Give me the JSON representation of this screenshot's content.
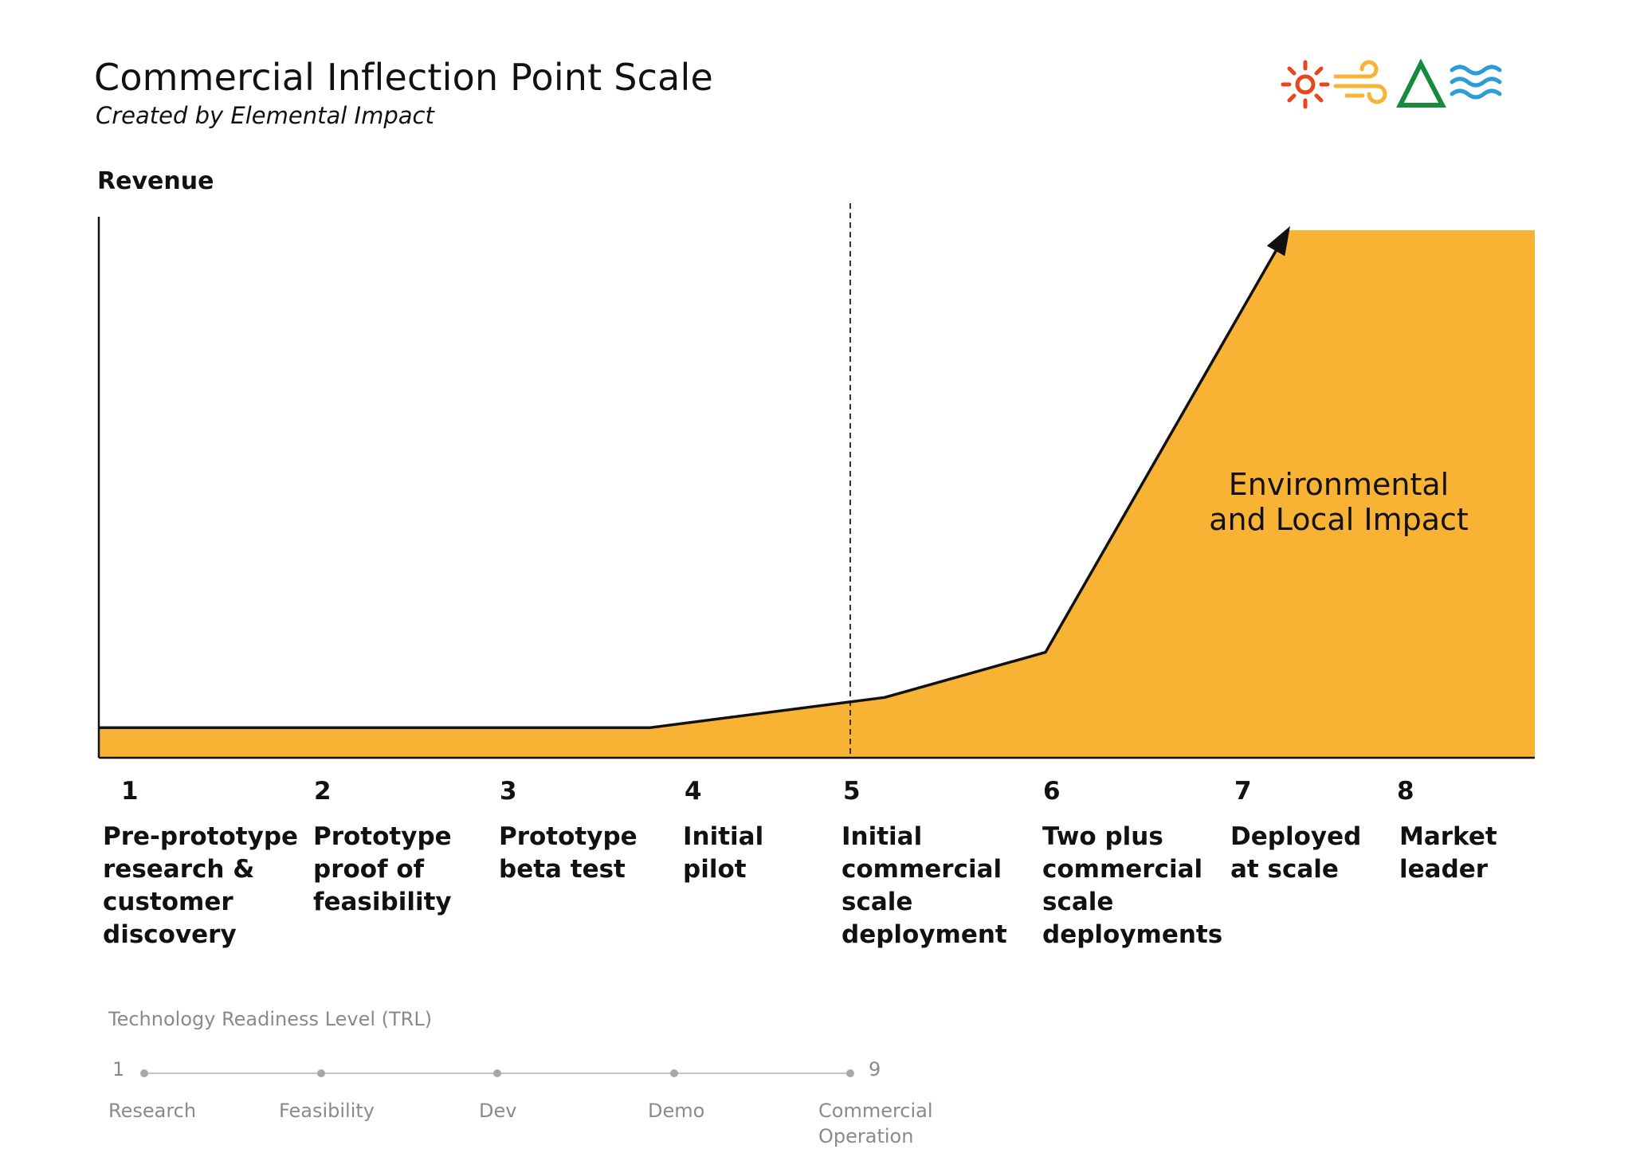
{
  "header": {
    "title": "Commercial Inflection Point Scale",
    "subtitle": "Created by Elemental Impact"
  },
  "logo": {
    "icons": [
      "sun-icon",
      "wind-icon",
      "triangle-icon",
      "water-waves-icon"
    ],
    "colors": [
      "#E8471E",
      "#F8B334",
      "#148C3C",
      "#2B9ED8"
    ]
  },
  "chart": {
    "y_axis_label": "Revenue",
    "impact_label_lines": [
      "Environmental",
      "and Local Impact"
    ],
    "fill_color": "#F8B334"
  },
  "chart_data": {
    "type": "area",
    "x": [
      1,
      2,
      3,
      4,
      5,
      6,
      7,
      8
    ],
    "values": [
      1,
      1,
      1,
      1,
      2,
      3.5,
      17.5,
      17.5
    ],
    "categories": [
      "Pre-prototype research & customer discovery",
      "Prototype proof of feasibility",
      "Prototype beta test",
      "Initial pilot",
      "Initial commercial scale deployment",
      "Two plus commercial scale deployments",
      "Deployed at scale",
      "Market leader"
    ],
    "ylabel": "Revenue",
    "ylim": [
      0,
      18
    ]
  },
  "stages": [
    {
      "number": "1",
      "lines": [
        "Pre-prototype",
        "research &",
        "customer",
        "discovery"
      ]
    },
    {
      "number": "2",
      "lines": [
        "Prototype",
        "proof of",
        "feasibility"
      ]
    },
    {
      "number": "3",
      "lines": [
        "Prototype",
        "beta test"
      ]
    },
    {
      "number": "4",
      "lines": [
        "Initial",
        "pilot"
      ]
    },
    {
      "number": "5",
      "lines": [
        "Initial",
        "commercial",
        "scale",
        "deployment"
      ]
    },
    {
      "number": "6",
      "lines": [
        "Two plus",
        "commercial",
        "scale",
        "deployments"
      ]
    },
    {
      "number": "7",
      "lines": [
        "Deployed",
        "at scale"
      ]
    },
    {
      "number": "8",
      "lines": [
        "Market",
        "leader"
      ]
    }
  ],
  "trl": {
    "title": "Technology Readiness Level (TRL)",
    "start": "1",
    "end": "9",
    "labels": [
      {
        "lines": [
          "Research"
        ]
      },
      {
        "lines": [
          "Feasibility"
        ]
      },
      {
        "lines": [
          "Dev"
        ]
      },
      {
        "lines": [
          "Demo"
        ]
      },
      {
        "lines": [
          "Commercial",
          "Operation"
        ]
      }
    ]
  }
}
